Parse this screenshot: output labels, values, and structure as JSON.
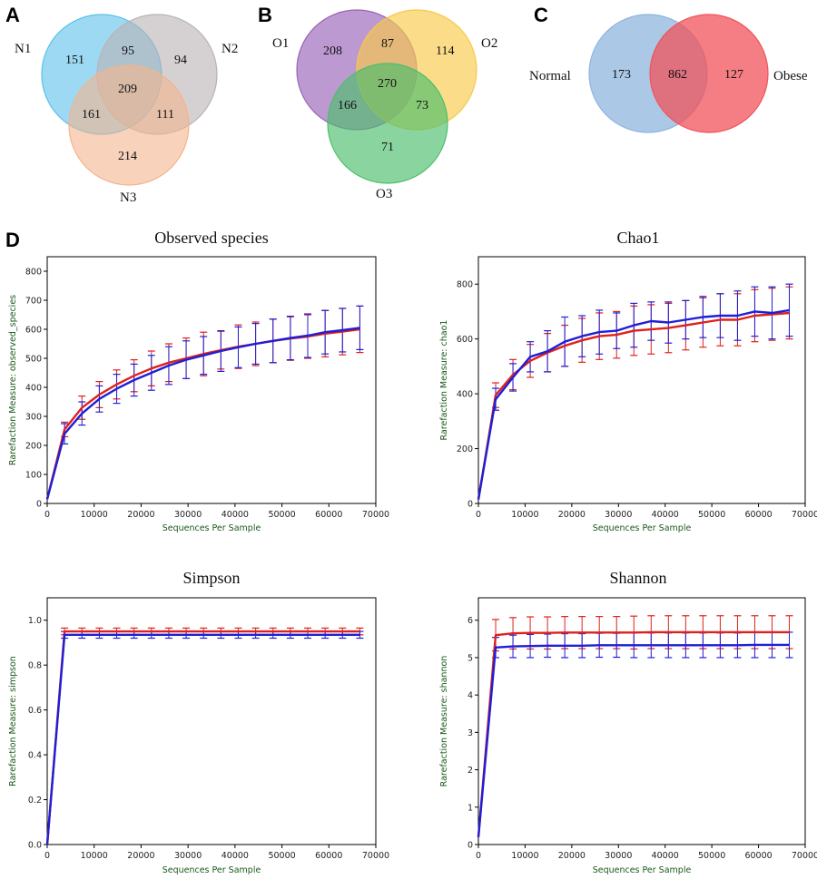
{
  "panels": {
    "A": "A",
    "B": "B",
    "C": "C",
    "D": "D"
  },
  "venn_A": {
    "sets": [
      "N1",
      "N2",
      "N3"
    ],
    "colors": [
      "#5bc0eb",
      "#b9b3b4",
      "#f3b48e"
    ],
    "counts": {
      "only_1": "151",
      "only_2": "94",
      "only_3": "214",
      "one_two": "95",
      "one_three": "161",
      "two_three": "111",
      "all": "209"
    }
  },
  "venn_B": {
    "sets": [
      "O1",
      "O2",
      "O3"
    ],
    "colors": [
      "#9a63b8",
      "#f7c94a",
      "#4bbf6b"
    ],
    "counts": {
      "only_1": "208",
      "only_2": "114",
      "only_3": "71",
      "one_two": "87",
      "one_three": "166",
      "two_three": "73",
      "all": "270"
    }
  },
  "venn_C": {
    "sets": [
      "Normal",
      "Obese"
    ],
    "colors": [
      "#8fb5df",
      "#f0535a"
    ],
    "counts": {
      "only_1": "173",
      "both": "862",
      "only_2": "127"
    }
  },
  "series_colors": {
    "blue": "#1f1fd6",
    "red": "#e0201a"
  },
  "chart_data": [
    {
      "type": "line",
      "title": "Observed species",
      "xlabel": "Sequences Per Sample",
      "ylabel": "Rarefaction Measure: observed_species",
      "xlim": [
        0,
        70000
      ],
      "ylim": [
        0,
        850
      ],
      "xticks": [
        0,
        10000,
        20000,
        30000,
        40000,
        50000,
        60000,
        70000
      ],
      "yticks": [
        0,
        100,
        200,
        300,
        400,
        500,
        600,
        700,
        800
      ],
      "x": [
        0,
        3700,
        7400,
        11100,
        14800,
        18500,
        22200,
        25900,
        29600,
        33300,
        37000,
        40700,
        44400,
        48100,
        51800,
        55500,
        59200,
        62900,
        66600
      ],
      "series": [
        {
          "color": "red",
          "values": [
            15,
            255,
            330,
            375,
            410,
            440,
            465,
            485,
            500,
            515,
            528,
            540,
            550,
            560,
            568,
            575,
            585,
            592,
            600
          ],
          "errors": [
            0,
            25,
            40,
            45,
            50,
            55,
            60,
            65,
            70,
            75,
            65,
            75,
            75,
            75,
            75,
            75,
            80,
            80,
            80
          ]
        },
        {
          "color": "blue",
          "values": [
            15,
            240,
            310,
            360,
            395,
            425,
            450,
            475,
            495,
            510,
            525,
            538,
            550,
            560,
            570,
            578,
            590,
            597,
            605
          ],
          "errors": [
            0,
            35,
            40,
            45,
            50,
            55,
            60,
            65,
            65,
            65,
            70,
            70,
            70,
            75,
            75,
            75,
            75,
            75,
            75
          ]
        }
      ]
    },
    {
      "type": "line",
      "title": "Chao1",
      "xlabel": "Sequences Per Sample",
      "ylabel": "Rarefaction Measure: chao1",
      "xlim": [
        0,
        70000
      ],
      "ylim": [
        0,
        900
      ],
      "xticks": [
        0,
        10000,
        20000,
        30000,
        40000,
        50000,
        60000,
        70000
      ],
      "yticks": [
        0,
        200,
        400,
        600,
        800
      ],
      "x": [
        0,
        3700,
        7400,
        11100,
        14800,
        18500,
        22200,
        25900,
        29600,
        33300,
        37000,
        40700,
        44400,
        48100,
        51800,
        55500,
        59200,
        62900,
        66600
      ],
      "series": [
        {
          "color": "red",
          "values": [
            15,
            395,
            470,
            520,
            550,
            575,
            595,
            610,
            615,
            630,
            635,
            640,
            650,
            660,
            670,
            670,
            685,
            690,
            695
          ],
          "errors": [
            0,
            45,
            55,
            60,
            70,
            75,
            80,
            85,
            85,
            90,
            90,
            90,
            90,
            90,
            95,
            95,
            95,
            95,
            95
          ]
        },
        {
          "color": "blue",
          "values": [
            15,
            380,
            460,
            535,
            555,
            590,
            610,
            625,
            630,
            650,
            665,
            660,
            670,
            680,
            685,
            685,
            700,
            695,
            705
          ],
          "errors": [
            0,
            40,
            50,
            55,
            75,
            90,
            75,
            80,
            65,
            80,
            70,
            75,
            70,
            75,
            80,
            90,
            90,
            95,
            95
          ]
        }
      ]
    },
    {
      "type": "line",
      "title": "Simpson",
      "xlabel": "Sequences Per Sample",
      "ylabel": "Rarefaction Measure: simpson",
      "xlim": [
        0,
        70000
      ],
      "ylim": [
        0,
        1.1
      ],
      "xticks": [
        0,
        10000,
        20000,
        30000,
        40000,
        50000,
        60000,
        70000
      ],
      "yticks": [
        0.0,
        0.2,
        0.4,
        0.6,
        0.8,
        1.0
      ],
      "x": [
        0,
        3700,
        7400,
        11100,
        14800,
        18500,
        22200,
        25900,
        29600,
        33300,
        37000,
        40700,
        44400,
        48100,
        51800,
        55500,
        59200,
        62900,
        66600
      ],
      "series": [
        {
          "color": "red",
          "values": [
            0.0,
            0.95,
            0.95,
            0.95,
            0.95,
            0.95,
            0.95,
            0.95,
            0.95,
            0.95,
            0.95,
            0.95,
            0.95,
            0.95,
            0.95,
            0.95,
            0.95,
            0.95,
            0.95
          ],
          "errors": [
            0,
            0.015,
            0.015,
            0.015,
            0.015,
            0.015,
            0.015,
            0.015,
            0.015,
            0.015,
            0.015,
            0.015,
            0.015,
            0.015,
            0.015,
            0.015,
            0.015,
            0.015,
            0.015
          ]
        },
        {
          "color": "blue",
          "values": [
            0.0,
            0.935,
            0.935,
            0.935,
            0.935,
            0.935,
            0.935,
            0.935,
            0.935,
            0.935,
            0.935,
            0.935,
            0.935,
            0.935,
            0.935,
            0.935,
            0.935,
            0.935,
            0.935
          ],
          "errors": [
            0,
            0.015,
            0.015,
            0.015,
            0.015,
            0.015,
            0.015,
            0.015,
            0.015,
            0.015,
            0.015,
            0.015,
            0.015,
            0.015,
            0.015,
            0.015,
            0.015,
            0.015,
            0.015
          ]
        }
      ]
    },
    {
      "type": "line",
      "title": "Shannon",
      "xlabel": "Sequences Per Sample",
      "ylabel": "Rarefaction Measure: shannon",
      "xlim": [
        0,
        70000
      ],
      "ylim": [
        0,
        6.6
      ],
      "xticks": [
        0,
        10000,
        20000,
        30000,
        40000,
        50000,
        60000,
        70000
      ],
      "yticks": [
        0,
        1,
        2,
        3,
        4,
        5,
        6
      ],
      "x": [
        0,
        3700,
        7400,
        11100,
        14800,
        18500,
        22200,
        25900,
        29600,
        33300,
        37000,
        40700,
        44400,
        48100,
        51800,
        55500,
        59200,
        62900,
        66600
      ],
      "series": [
        {
          "color": "red",
          "values": [
            0.2,
            5.6,
            5.65,
            5.66,
            5.66,
            5.67,
            5.67,
            5.67,
            5.67,
            5.67,
            5.68,
            5.68,
            5.68,
            5.68,
            5.68,
            5.68,
            5.68,
            5.68,
            5.68
          ],
          "errors": [
            0,
            0.42,
            0.42,
            0.43,
            0.43,
            0.43,
            0.43,
            0.43,
            0.43,
            0.44,
            0.44,
            0.44,
            0.44,
            0.44,
            0.44,
            0.44,
            0.44,
            0.44,
            0.44
          ]
        },
        {
          "color": "blue",
          "values": [
            0.2,
            5.27,
            5.3,
            5.31,
            5.32,
            5.32,
            5.32,
            5.33,
            5.33,
            5.33,
            5.33,
            5.33,
            5.33,
            5.33,
            5.33,
            5.33,
            5.34,
            5.34,
            5.34
          ],
          "errors": [
            0,
            0.27,
            0.3,
            0.31,
            0.31,
            0.32,
            0.32,
            0.32,
            0.32,
            0.33,
            0.33,
            0.33,
            0.33,
            0.33,
            0.33,
            0.33,
            0.34,
            0.34,
            0.34
          ]
        }
      ]
    }
  ]
}
